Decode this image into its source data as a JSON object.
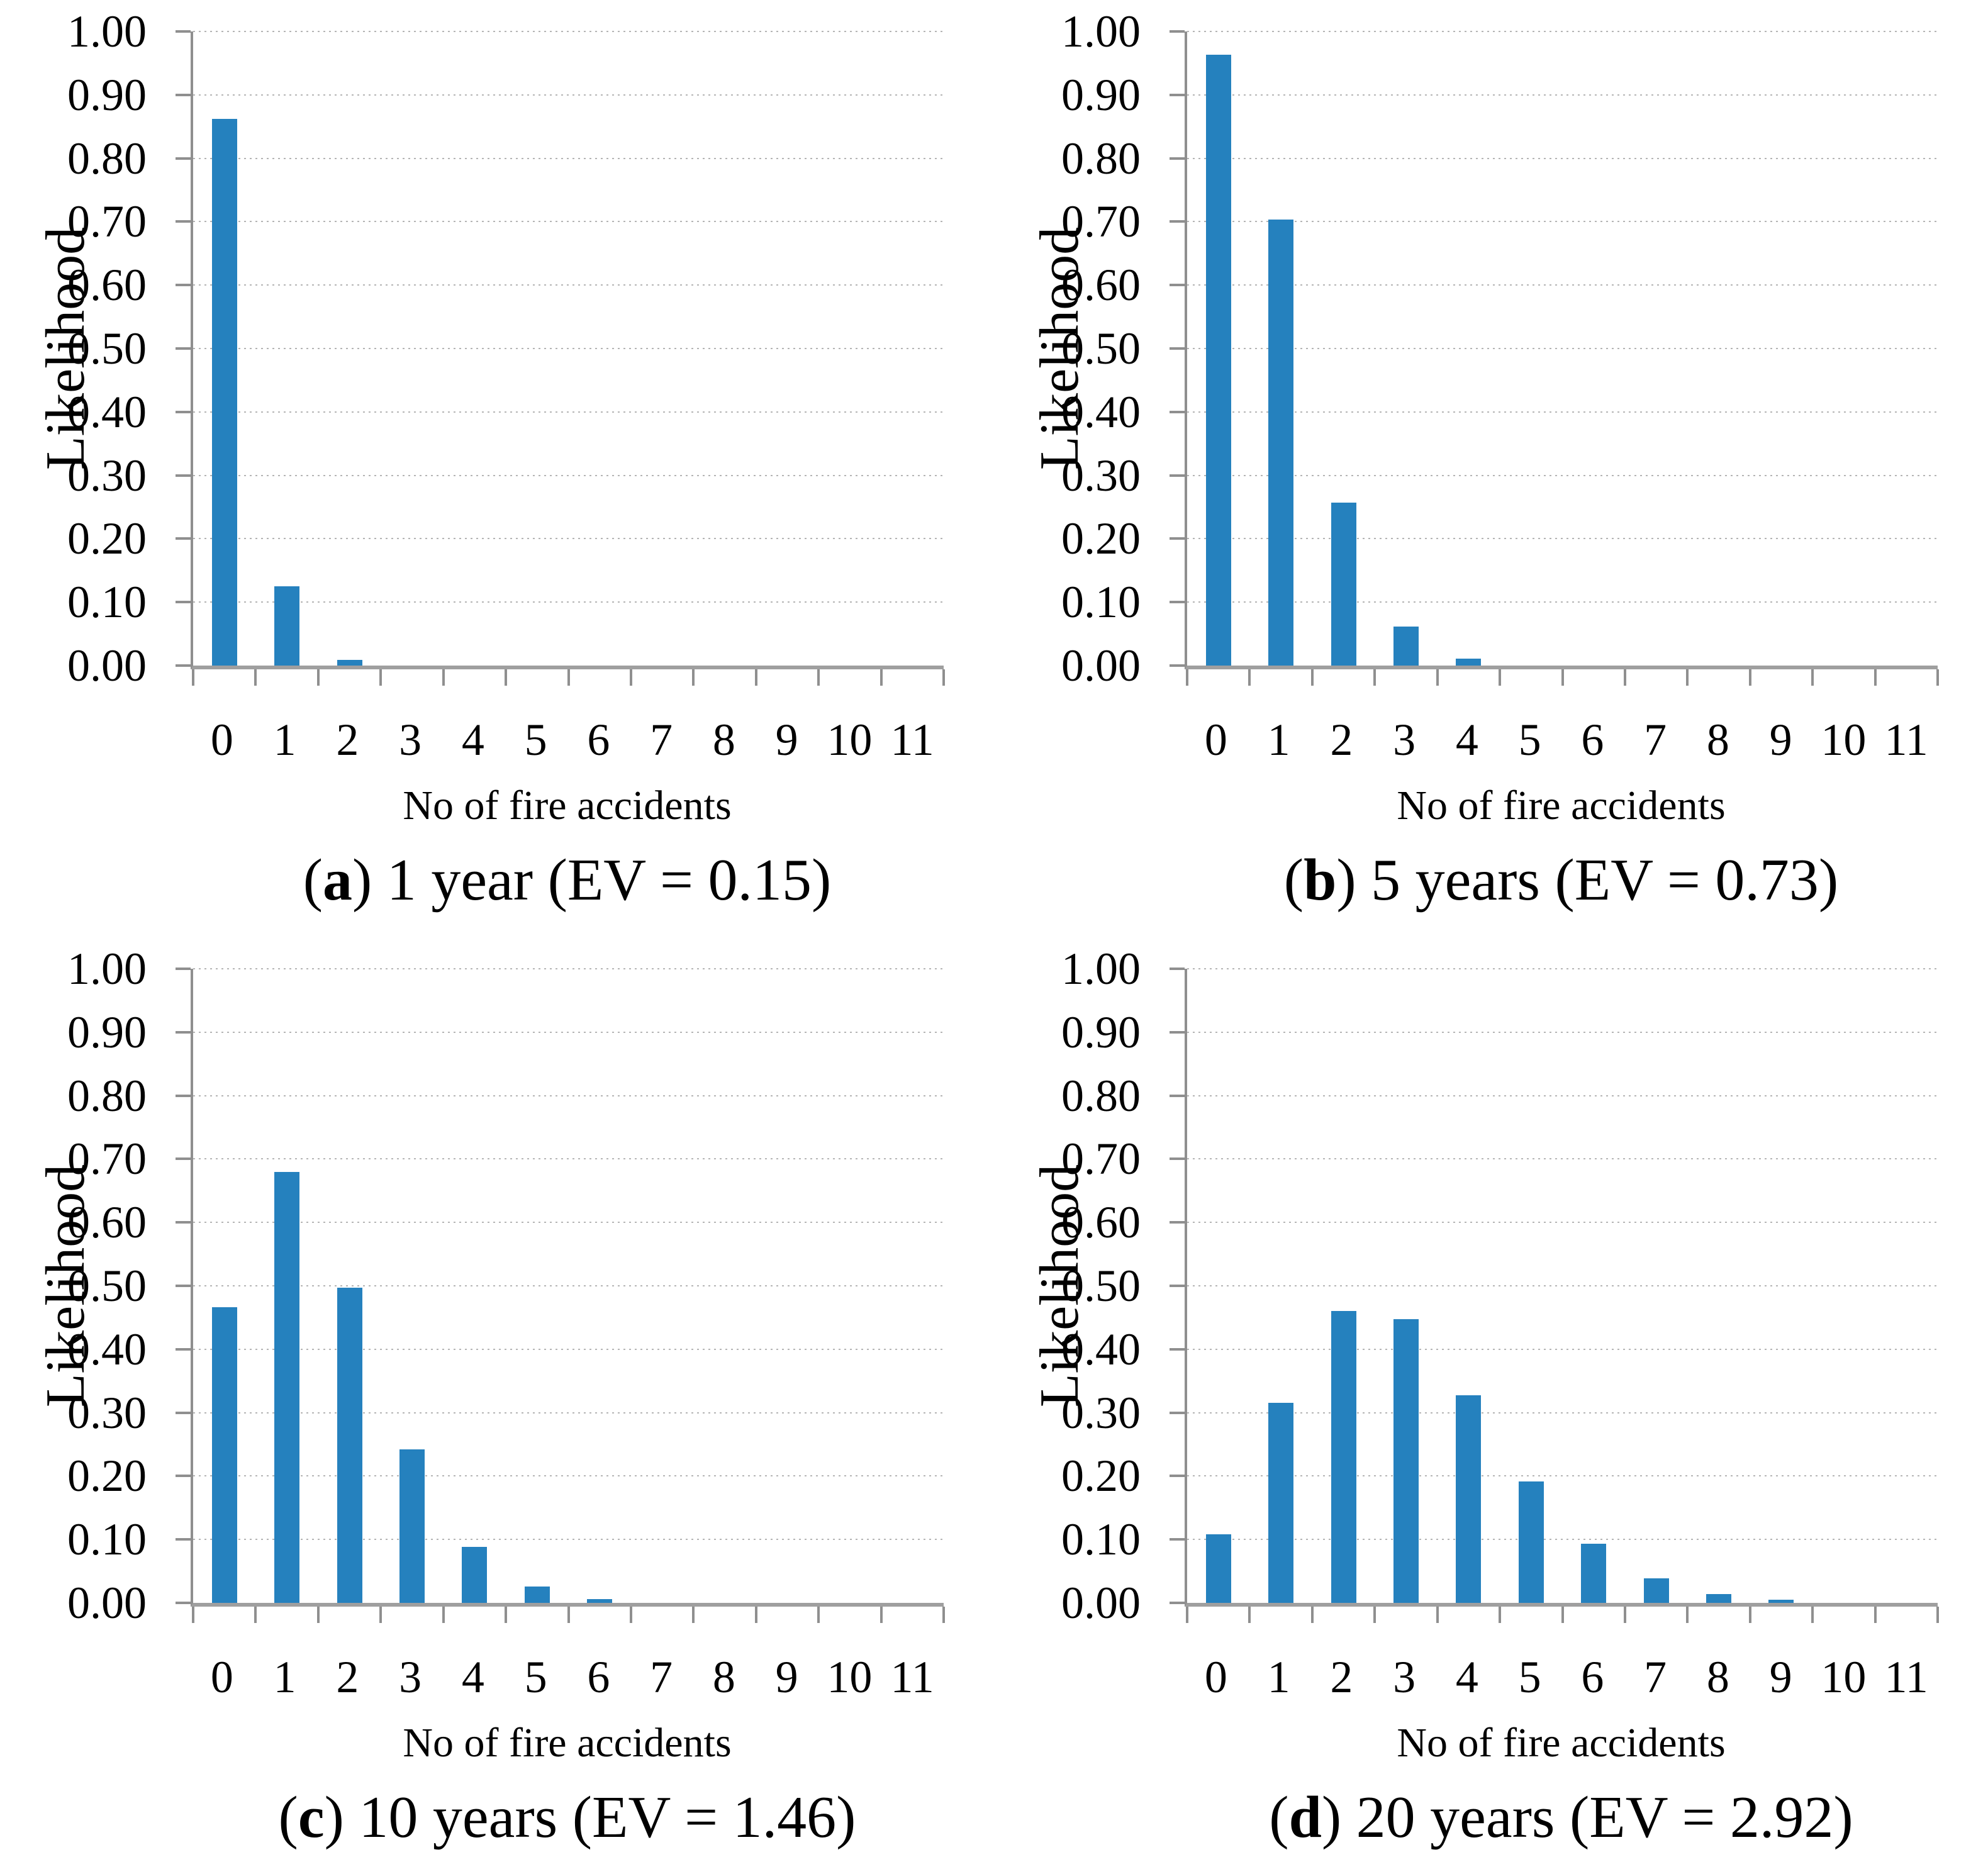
{
  "figure": {
    "background": "#ffffff",
    "bar_color": "#2581BE",
    "axis_color": "#8f8f8f",
    "axis_bottom_color": "#9f9f9f",
    "grid_color": "#b5b5b5",
    "text_color": "#000000",
    "caption_open": "(",
    "y_tick_labels": [
      "0.00",
      "0.10",
      "0.20",
      "0.30",
      "0.40",
      "0.50",
      "0.60",
      "0.70",
      "0.80",
      "0.90",
      "1.00"
    ]
  },
  "chart_data": [
    {
      "type": "bar",
      "panel": "a",
      "title": "(a) 1 year (EV = 0.15)",
      "caption_letter": "a",
      "caption_rest": ") 1 year (EV = 0.15)",
      "period": "1 year",
      "ev": 0.15,
      "xlabel": "No of fire accidents",
      "ylabel": "Likelihood",
      "ylim": [
        0,
        1
      ],
      "grid": true,
      "legend": "none",
      "categories": [
        "0",
        "1",
        "2",
        "3",
        "4",
        "5",
        "6",
        "7",
        "8",
        "9",
        "10",
        "11"
      ],
      "values": [
        0.862,
        0.125,
        0.009,
        0,
        0,
        0,
        0,
        0,
        0,
        0,
        0,
        0
      ]
    },
    {
      "type": "bar",
      "panel": "b",
      "title": "(b) 5 years (EV = 0.73)",
      "caption_letter": "b",
      "caption_rest": ") 5 years (EV = 0.73)",
      "period": "5 years",
      "ev": 0.73,
      "xlabel": "No of fire accidents",
      "ylabel": "Likelihood",
      "ylim": [
        0,
        1
      ],
      "grid": true,
      "legend": "none",
      "categories": [
        "0",
        "1",
        "2",
        "3",
        "4",
        "5",
        "6",
        "7",
        "8",
        "9",
        "10",
        "11"
      ],
      "values": [
        0.963,
        0.703,
        0.257,
        0.062,
        0.011,
        0,
        0,
        0,
        0,
        0,
        0,
        0
      ]
    },
    {
      "type": "bar",
      "panel": "c",
      "title": "(c) 10 years (EV = 1.46)",
      "caption_letter": "c",
      "caption_rest": ") 10 years (EV = 1.46)",
      "period": "10 years",
      "ev": 1.46,
      "xlabel": "No of fire accidents",
      "ylabel": "Likelihood",
      "ylim": [
        0,
        1
      ],
      "grid": true,
      "legend": "none",
      "categories": [
        "0",
        "1",
        "2",
        "3",
        "4",
        "5",
        "6",
        "7",
        "8",
        "9",
        "10",
        "11"
      ],
      "values": [
        0.466,
        0.68,
        0.497,
        0.242,
        0.088,
        0.026,
        0.006,
        0,
        0,
        0,
        0,
        0
      ]
    },
    {
      "type": "bar",
      "panel": "d",
      "title": "(d) 20 years (EV = 2.92)",
      "caption_letter": "d",
      "caption_rest": ") 20 years (EV = 2.92)",
      "period": "20 years",
      "ev": 2.92,
      "xlabel": "No of fire accidents",
      "ylabel": "Likelihood",
      "ylim": [
        0,
        1
      ],
      "grid": true,
      "legend": "none",
      "categories": [
        "0",
        "1",
        "2",
        "3",
        "4",
        "5",
        "6",
        "7",
        "8",
        "9",
        "10",
        "11"
      ],
      "values": [
        0.108,
        0.315,
        0.46,
        0.447,
        0.327,
        0.191,
        0.093,
        0.039,
        0.014,
        0.005,
        0,
        0
      ]
    }
  ]
}
